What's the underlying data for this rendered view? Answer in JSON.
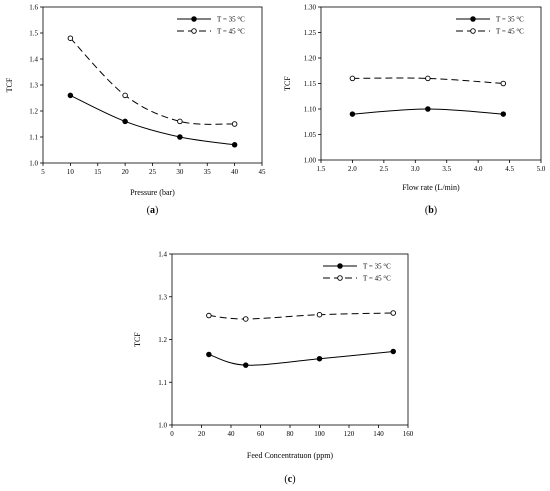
{
  "chart_data": [
    {
      "type": "line",
      "panel_label": "(a)",
      "panel_letter": "a",
      "xlabel": "Pressure (bar)",
      "ylabel": "TCF",
      "xlim": [
        5,
        45
      ],
      "ylim": [
        1.0,
        1.6
      ],
      "xticks": [
        "5",
        "10",
        "15",
        "20",
        "25",
        "30",
        "35",
        "40",
        "45"
      ],
      "yticks": [
        "1.0",
        "1.1",
        "1.2",
        "1.3",
        "1.4",
        "1.5",
        "1.6"
      ],
      "legend_position": "top-right",
      "grid": false,
      "series": [
        {
          "name": "T = 35 °C",
          "style": "solid",
          "marker": "filled",
          "x": [
            10,
            20,
            30,
            40
          ],
          "y": [
            1.26,
            1.16,
            1.1,
            1.07
          ]
        },
        {
          "name": "T = 45 °C",
          "style": "dashed",
          "marker": "open",
          "x": [
            10,
            20,
            30,
            40
          ],
          "y": [
            1.48,
            1.26,
            1.16,
            1.15
          ]
        }
      ]
    },
    {
      "type": "line",
      "panel_label": "(b)",
      "panel_letter": "b",
      "xlabel": "Flow rate (L/min)",
      "ylabel": "TCF",
      "xlim": [
        1.5,
        5.0
      ],
      "ylim": [
        1.0,
        1.3
      ],
      "xticks": [
        "1.5",
        "2.0",
        "2.5",
        "3.0",
        "3.5",
        "4.0",
        "4.5",
        "5.0"
      ],
      "yticks": [
        "1.00",
        "1.05",
        "1.10",
        "1.15",
        "1.20",
        "1.25",
        "1.30"
      ],
      "legend_position": "top-right",
      "grid": false,
      "series": [
        {
          "name": "T = 35 °C",
          "style": "solid",
          "marker": "filled",
          "x": [
            2.0,
            3.2,
            4.4
          ],
          "y": [
            1.09,
            1.1,
            1.09
          ]
        },
        {
          "name": "T = 45 °C",
          "style": "dashed",
          "marker": "open",
          "x": [
            2.0,
            3.2,
            4.4
          ],
          "y": [
            1.16,
            1.16,
            1.15
          ]
        }
      ]
    },
    {
      "type": "line",
      "panel_label": "(c)",
      "panel_letter": "c",
      "xlabel": "Feed Concentratuon (ppm)",
      "ylabel": "TCF",
      "xlim": [
        0,
        160
      ],
      "ylim": [
        1.0,
        1.4
      ],
      "xticks": [
        "0",
        "20",
        "40",
        "60",
        "80",
        "100",
        "120",
        "140",
        "160"
      ],
      "yticks": [
        "1.0",
        "1.1",
        "1.2",
        "1.3",
        "1.4"
      ],
      "legend_position": "top-right",
      "grid": false,
      "series": [
        {
          "name": "T = 35 °C",
          "style": "solid",
          "marker": "filled",
          "x": [
            25,
            50,
            100,
            150
          ],
          "y": [
            1.165,
            1.14,
            1.155,
            1.172
          ]
        },
        {
          "name": "T = 45 °C",
          "style": "dashed",
          "marker": "open",
          "x": [
            25,
            50,
            100,
            150
          ],
          "y": [
            1.256,
            1.248,
            1.258,
            1.262
          ]
        }
      ]
    }
  ]
}
